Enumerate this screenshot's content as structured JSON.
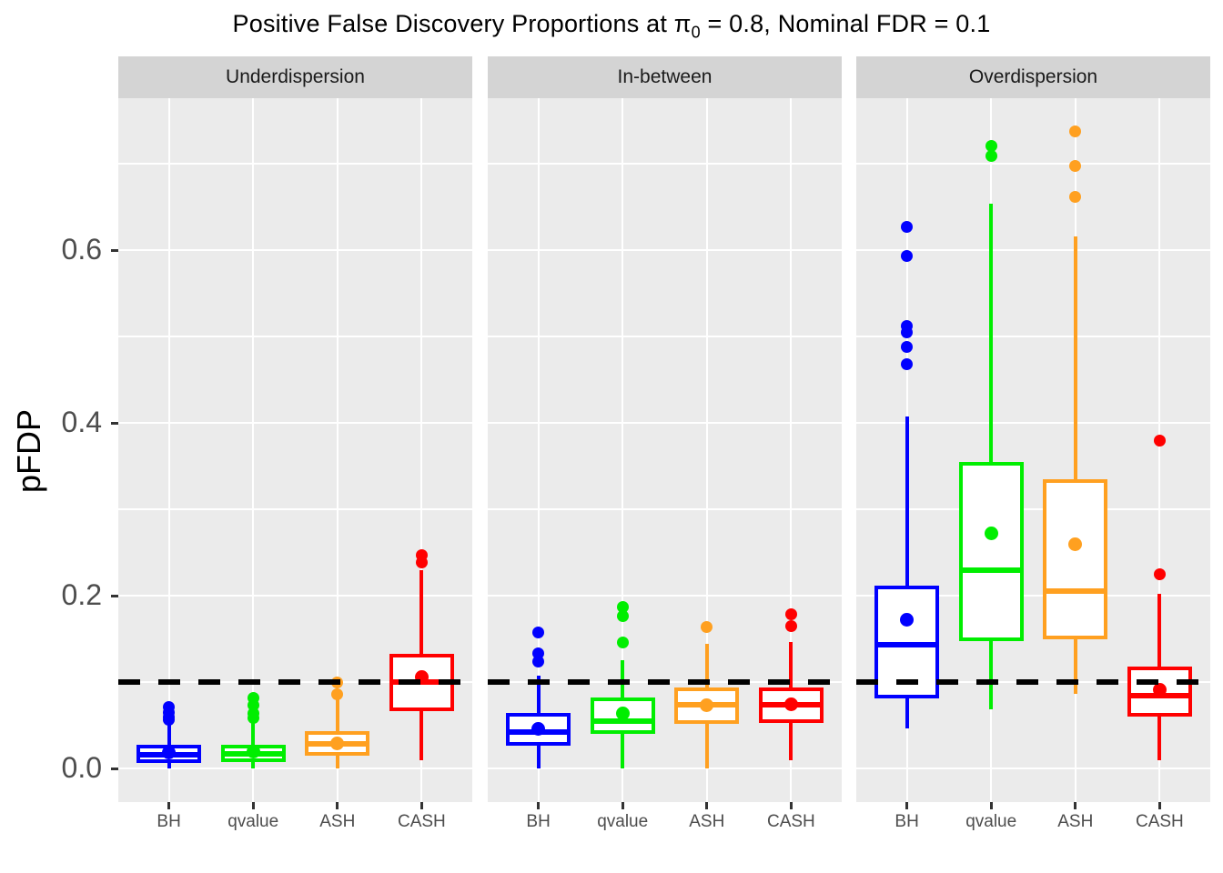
{
  "chart_data": {
    "type": "boxplot",
    "title": {
      "text_before_pi": "Positive False Discovery Proportions at ",
      "pi_symbol": "π",
      "pi_subscript": "0",
      "text_after_pi": " = 0.8, Nominal FDR = 0.1"
    },
    "ylabel": "pFDP",
    "y_axis": {
      "ticks": [
        0.0,
        0.2,
        0.4,
        0.6
      ],
      "tick_labels": [
        "0.0",
        "0.2",
        "0.4",
        "0.6"
      ],
      "minor_gridlines": [
        0.1,
        0.3,
        0.5,
        0.7
      ],
      "ylim": [
        -0.039,
        0.776
      ],
      "grid": true
    },
    "reference_line": {
      "value": 0.1,
      "style": "dashed",
      "color": "#000000"
    },
    "methods": [
      "BH",
      "qvalue",
      "ASH",
      "CASH"
    ],
    "colors": {
      "BH": "#0000FF",
      "qvalue": "#00EE00",
      "ASH": "#FFA020",
      "CASH": "#FF0000"
    },
    "facets": [
      {
        "label": "Underdispersion",
        "boxes": [
          {
            "method": "BH",
            "whisker_low": 0.0,
            "q1": 0.006,
            "median": 0.016,
            "q3": 0.027,
            "whisker_high": 0.051,
            "mean": 0.018,
            "outliers": [
              0.056,
              0.06,
              0.065,
              0.071
            ]
          },
          {
            "method": "qvalue",
            "whisker_low": 0.0,
            "q1": 0.007,
            "median": 0.017,
            "q3": 0.027,
            "whisker_high": 0.054,
            "mean": 0.019,
            "outliers": [
              0.058,
              0.064,
              0.073,
              0.082
            ]
          },
          {
            "method": "ASH",
            "whisker_low": 0.0,
            "q1": 0.015,
            "median": 0.028,
            "q3": 0.043,
            "whisker_high": 0.08,
            "mean": 0.029,
            "outliers": [
              0.086,
              0.1
            ]
          },
          {
            "method": "CASH",
            "whisker_low": 0.01,
            "q1": 0.066,
            "median": 0.1,
            "q3": 0.133,
            "whisker_high": 0.23,
            "mean": 0.106,
            "outliers": [
              0.238,
              0.247
            ]
          }
        ]
      },
      {
        "label": "In-between",
        "boxes": [
          {
            "method": "BH",
            "whisker_low": 0.0,
            "q1": 0.026,
            "median": 0.042,
            "q3": 0.064,
            "whisker_high": 0.107,
            "mean": 0.046,
            "outliers": [
              0.124,
              0.133,
              0.157
            ]
          },
          {
            "method": "qvalue",
            "whisker_low": 0.0,
            "q1": 0.04,
            "median": 0.055,
            "q3": 0.082,
            "whisker_high": 0.125,
            "mean": 0.064,
            "outliers": [
              0.146,
              0.176,
              0.187
            ]
          },
          {
            "method": "ASH",
            "whisker_low": 0.0,
            "q1": 0.052,
            "median": 0.074,
            "q3": 0.094,
            "whisker_high": 0.144,
            "mean": 0.073,
            "outliers": [
              0.164
            ]
          },
          {
            "method": "CASH",
            "whisker_low": 0.009,
            "q1": 0.053,
            "median": 0.074,
            "q3": 0.094,
            "whisker_high": 0.146,
            "mean": 0.074,
            "outliers": [
              0.165,
              0.178
            ]
          }
        ]
      },
      {
        "label": "Overdispersion",
        "boxes": [
          {
            "method": "BH",
            "whisker_low": 0.046,
            "q1": 0.081,
            "median": 0.143,
            "q3": 0.212,
            "whisker_high": 0.407,
            "mean": 0.172,
            "outliers": [
              0.468,
              0.488,
              0.505,
              0.512,
              0.593,
              0.627
            ]
          },
          {
            "method": "qvalue",
            "whisker_low": 0.068,
            "q1": 0.147,
            "median": 0.23,
            "q3": 0.355,
            "whisker_high": 0.654,
            "mean": 0.272,
            "outliers": [
              0.709,
              0.721
            ]
          },
          {
            "method": "ASH",
            "whisker_low": 0.086,
            "q1": 0.149,
            "median": 0.205,
            "q3": 0.335,
            "whisker_high": 0.616,
            "mean": 0.26,
            "outliers": [
              0.662,
              0.697,
              0.737
            ]
          },
          {
            "method": "CASH",
            "whisker_low": 0.009,
            "q1": 0.06,
            "median": 0.084,
            "q3": 0.118,
            "whisker_high": 0.202,
            "mean": 0.091,
            "outliers": [
              0.225,
              0.38
            ]
          }
        ]
      }
    ]
  }
}
